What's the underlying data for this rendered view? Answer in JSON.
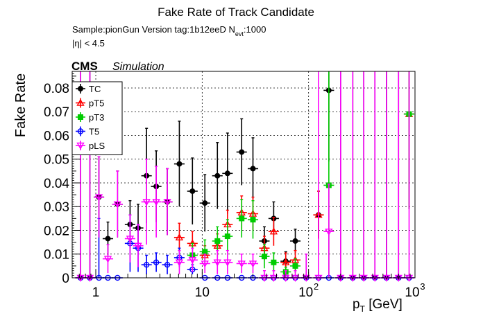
{
  "chart_data": {
    "type": "scatter",
    "title": "Fake Rate of Track Candidate",
    "subtitle_sample": "Sample:pionGun   Version tag:1b12eeD  N",
    "subtitle_sub": "evt",
    "subtitle_tail": ":1000",
    "eta_cut": "|η| < 4.5",
    "cms_label": "CMS",
    "sim_label": "Simulation",
    "ylabel": "Fake Rate",
    "xlabel_main": "p",
    "xlabel_sub": "T",
    "xlabel_unit": " [GeV]",
    "xscale": "log",
    "xlim": [
      0.6,
      1000
    ],
    "ylim": [
      0,
      0.087
    ],
    "grid": true,
    "legend_position": "top-left",
    "x_ticks": [
      {
        "v": 1,
        "label": "1",
        "sup": ""
      },
      {
        "v": 10,
        "label": "10",
        "sup": ""
      },
      {
        "v": 100,
        "label": "10",
        "sup": "2"
      },
      {
        "v": 1000,
        "label": "10",
        "sup": "3"
      }
    ],
    "y_ticks": [
      {
        "v": 0,
        "label": "0"
      },
      {
        "v": 0.01,
        "label": "0.01"
      },
      {
        "v": 0.02,
        "label": "0.02"
      },
      {
        "v": 0.03,
        "label": "0.03"
      },
      {
        "v": 0.04,
        "label": "0.04"
      },
      {
        "v": 0.05,
        "label": "0.05"
      },
      {
        "v": 0.06,
        "label": "0.06"
      },
      {
        "v": 0.07,
        "label": "0.07"
      },
      {
        "v": 0.08,
        "label": "0.08"
      }
    ],
    "series": [
      {
        "name": "TC",
        "color": "#000000",
        "marker": "filled-circle",
        "points": [
          [
            0.72,
            0,
            0.09
          ],
          [
            0.88,
            0,
            0.09
          ],
          [
            1.07,
            0.034,
            0.017
          ],
          [
            1.3,
            0.0165,
            0.007
          ],
          [
            1.6,
            0.031,
            0.014
          ],
          [
            2.1,
            0.0225,
            0.01
          ],
          [
            2.5,
            0.021,
            0.01
          ],
          [
            3.0,
            0.043,
            0.02
          ],
          [
            3.7,
            0.0385,
            0.015
          ],
          [
            4.7,
            0.032,
            0.014
          ],
          [
            6.1,
            0.048,
            0.018
          ],
          [
            8.1,
            0.0365,
            0.014
          ],
          [
            10.6,
            0.0315,
            0.012
          ],
          [
            13.9,
            0.043,
            0.014
          ],
          [
            17.3,
            0.044,
            0.017
          ],
          [
            23.5,
            0.053,
            0.014
          ],
          [
            30.0,
            0.046,
            0.013
          ],
          [
            38.4,
            0.0155,
            0.006
          ],
          [
            47.0,
            0.025,
            0.007
          ],
          [
            61.0,
            0.007,
            0.004
          ],
          [
            75.0,
            0.0155,
            0.005
          ],
          [
            95.0,
            0,
            0.01
          ],
          [
            124.0,
            0.0265,
            0.01
          ],
          [
            155.0,
            0.079,
            0.03
          ],
          [
            200.0,
            0,
            0.09
          ],
          [
            260.0,
            0,
            0.09
          ],
          [
            330.0,
            0,
            0.09
          ],
          [
            420.0,
            0,
            0.09
          ],
          [
            540.0,
            0,
            0.09
          ],
          [
            700.0,
            0,
            0.09
          ],
          [
            880.0,
            0.069,
            0.04
          ]
        ]
      },
      {
        "name": "pT5",
        "color": "#ff0000",
        "marker": "open-triangle-up",
        "points": [
          [
            6.1,
            0.017,
            0.006
          ],
          [
            8.1,
            0.0145,
            0.005
          ],
          [
            10.6,
            0.0095,
            0.004
          ],
          [
            13.9,
            0.0135,
            0.005
          ],
          [
            17.3,
            0.0225,
            0.006
          ],
          [
            23.5,
            0.0275,
            0.007
          ],
          [
            30.0,
            0.027,
            0.007
          ],
          [
            38.4,
            0.0125,
            0.005
          ],
          [
            47.0,
            0.0195,
            0.006
          ],
          [
            61.0,
            0.0065,
            0.004
          ],
          [
            75.0,
            0.0075,
            0.004
          ],
          [
            124.0,
            0.0265,
            0.01
          ],
          [
            880.0,
            0.069,
            0.04
          ]
        ]
      },
      {
        "name": "pT3",
        "color": "#00cc00",
        "marker": "filled-square",
        "points": [
          [
            8.1,
            0.0095,
            0.005
          ],
          [
            10.6,
            0.011,
            0.005
          ],
          [
            13.9,
            0.0155,
            0.006
          ],
          [
            17.3,
            0.0175,
            0.007
          ],
          [
            23.5,
            0.025,
            0.008
          ],
          [
            30.0,
            0.0245,
            0.008
          ],
          [
            38.4,
            0.009,
            0.005
          ],
          [
            47.0,
            0.0065,
            0.004
          ],
          [
            61.0,
            0.0025,
            0.002
          ],
          [
            75.0,
            0.005,
            0.003
          ],
          [
            155.0,
            0.039,
            0.05
          ],
          [
            880.0,
            0.069,
            0.04
          ]
        ]
      },
      {
        "name": "T5",
        "color": "#0000ff",
        "marker": "open-circle",
        "points": [
          [
            0.72,
            0,
            0
          ],
          [
            0.88,
            0,
            0
          ],
          [
            1.07,
            0,
            0.025
          ],
          [
            1.3,
            0,
            0
          ],
          [
            1.6,
            0,
            0
          ],
          [
            2.1,
            0.0145,
            0.012
          ],
          [
            2.5,
            0.0125,
            0.01
          ],
          [
            3.0,
            0.0055,
            0.004
          ],
          [
            3.7,
            0.0065,
            0.004
          ],
          [
            4.7,
            0.0055,
            0.004
          ],
          [
            6.1,
            0.0085,
            0.004
          ],
          [
            8.1,
            0.0035,
            0.002
          ],
          [
            10.6,
            0,
            0
          ],
          [
            13.9,
            0,
            0
          ],
          [
            17.3,
            0,
            0
          ],
          [
            23.5,
            0,
            0
          ],
          [
            30.0,
            0,
            0
          ],
          [
            38.4,
            0,
            0
          ],
          [
            47.0,
            0,
            0
          ],
          [
            61.0,
            0,
            0
          ],
          [
            75.0,
            0,
            0
          ],
          [
            95.0,
            0,
            0
          ],
          [
            124.0,
            0,
            0
          ],
          [
            155.0,
            0,
            0
          ],
          [
            200.0,
            0,
            0
          ],
          [
            260.0,
            0,
            0
          ],
          [
            330.0,
            0,
            0
          ],
          [
            420.0,
            0,
            0
          ],
          [
            540.0,
            0,
            0
          ],
          [
            700.0,
            0,
            0
          ],
          [
            880.0,
            0,
            0
          ]
        ]
      },
      {
        "name": "pLS",
        "color": "#ff00ff",
        "marker": "open-triangle-down",
        "points": [
          [
            0.72,
            0,
            0.09
          ],
          [
            0.88,
            0,
            0.09
          ],
          [
            1.07,
            0.034,
            0.017
          ],
          [
            1.3,
            0.008,
            0.006
          ],
          [
            1.6,
            0.031,
            0.014
          ],
          [
            2.1,
            0.0165,
            0.01
          ],
          [
            2.5,
            0.0135,
            0.009
          ],
          [
            3.0,
            0.032,
            0.018
          ],
          [
            3.7,
            0.032,
            0.015
          ],
          [
            4.7,
            0.032,
            0.014
          ],
          [
            6.1,
            0.0065,
            0.005
          ],
          [
            8.1,
            0.0075,
            0.005
          ],
          [
            10.6,
            0.006,
            0.004
          ],
          [
            13.9,
            0.0065,
            0.005
          ],
          [
            17.3,
            0.0065,
            0.005
          ],
          [
            23.5,
            0.006,
            0.004
          ],
          [
            30.0,
            0.006,
            0.004
          ],
          [
            38.4,
            0,
            0.003
          ],
          [
            47.0,
            0,
            0.003
          ],
          [
            61.0,
            0,
            0.003
          ],
          [
            75.0,
            0,
            0.003
          ],
          [
            95.0,
            0,
            0.01
          ],
          [
            124.0,
            0,
            0.09
          ],
          [
            155.0,
            0.0195,
            0.02
          ],
          [
            200.0,
            0,
            0.09
          ],
          [
            260.0,
            0,
            0.09
          ],
          [
            330.0,
            0,
            0.09
          ],
          [
            420.0,
            0,
            0.09
          ],
          [
            540.0,
            0,
            0.09
          ],
          [
            700.0,
            0,
            0.09
          ],
          [
            880.0,
            0,
            0.09
          ]
        ]
      }
    ]
  }
}
